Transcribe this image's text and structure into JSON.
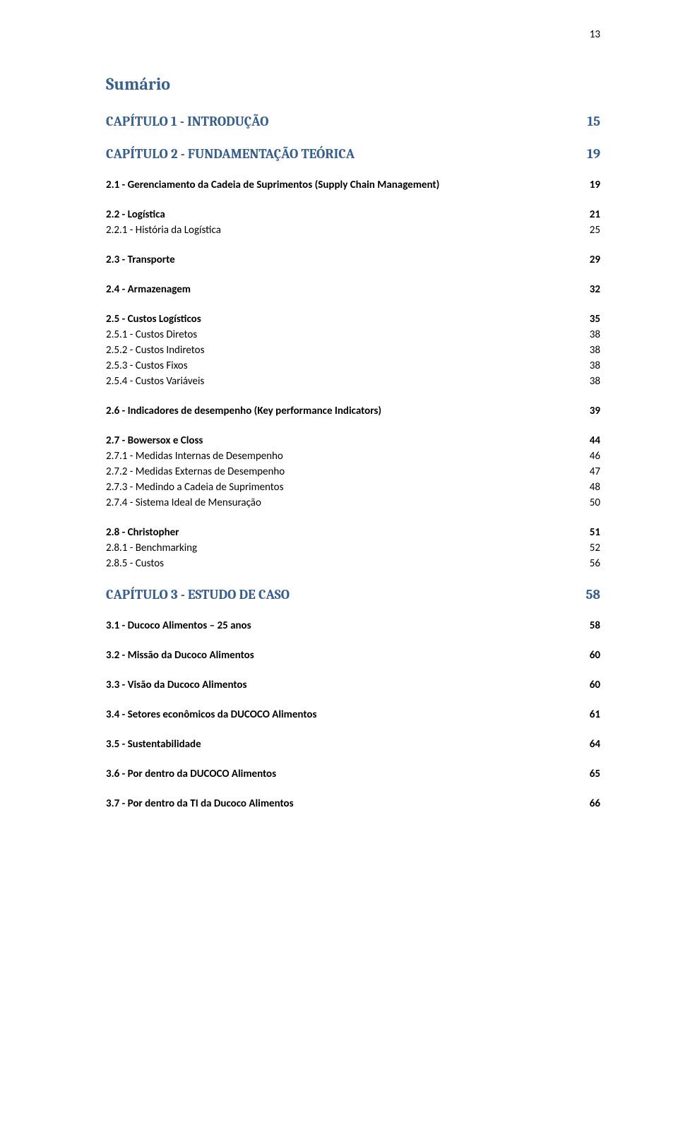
{
  "page_number": "13",
  "summary_heading": "Sumário",
  "colors": {
    "heading_blue": "#365f91",
    "text_black": "#000000",
    "background": "#ffffff"
  },
  "typography": {
    "heading_font": "Cambria",
    "body_font": "Calibri",
    "summary_fontsize": 24,
    "chapter_fontsize": 19,
    "section_fontsize": 15
  },
  "entries": [
    {
      "type": "chapter",
      "label": "CAPÍTULO 1 - INTRODUÇÃO",
      "page": "15"
    },
    {
      "type": "chapter",
      "label": "CAPÍTULO 2 - FUNDAMENTAÇÃO TEÓRICA",
      "page": "19"
    },
    {
      "type": "section",
      "label": "2.1 - Gerenciamento da Cadeia de Suprimentos (Supply Chain Management)",
      "page": "19"
    },
    {
      "type": "section",
      "label": "2.2 - Logística",
      "page": "21"
    },
    {
      "type": "sub",
      "label": "2.2.1 - História da Logística",
      "page": "25"
    },
    {
      "type": "section",
      "label": "2.3 - Transporte",
      "page": "29"
    },
    {
      "type": "section",
      "label": "2.4 - Armazenagem",
      "page": "32"
    },
    {
      "type": "section",
      "label": "2.5 - Custos Logísticos",
      "page": "35"
    },
    {
      "type": "sub",
      "label": "2.5.1 - Custos Diretos",
      "page": "38"
    },
    {
      "type": "sub",
      "label": "2.5.2 - Custos Indiretos",
      "page": "38"
    },
    {
      "type": "sub",
      "label": "2.5.3 - Custos Fixos",
      "page": "38"
    },
    {
      "type": "sub",
      "label": "2.5.4 - Custos Variáveis",
      "page": "38"
    },
    {
      "type": "section",
      "label": "2.6 - Indicadores de desempenho (Key performance Indicators)",
      "page": "39"
    },
    {
      "type": "section",
      "label": "2.7 - Bowersox e Closs",
      "page": "44"
    },
    {
      "type": "sub",
      "label": "2.7.1 - Medidas Internas de Desempenho",
      "page": "46"
    },
    {
      "type": "sub",
      "label": "2.7.2 - Medidas Externas de Desempenho",
      "page": "47"
    },
    {
      "type": "sub",
      "label": "2.7.3 - Medindo a Cadeia de Suprimentos",
      "page": "48"
    },
    {
      "type": "sub",
      "label": "2.7.4 - Sistema Ideal de Mensuração",
      "page": "50"
    },
    {
      "type": "section",
      "label": "2.8 - Christopher",
      "page": "51"
    },
    {
      "type": "sub",
      "label": "2.8.1 - Benchmarking",
      "page": "52"
    },
    {
      "type": "sub",
      "label": "2.8.5 - Custos",
      "page": "56"
    },
    {
      "type": "chapter",
      "label": "CAPÍTULO 3 - ESTUDO DE CASO",
      "page": "58"
    },
    {
      "type": "section",
      "label": "3.1 - Ducoco Alimentos – 25 anos",
      "page": "58"
    },
    {
      "type": "section",
      "label": "3.2 - Missão da Ducoco Alimentos",
      "page": "60"
    },
    {
      "type": "section",
      "label": "3.3 - Visão da Ducoco Alimentos",
      "page": "60"
    },
    {
      "type": "section",
      "label": "3.4 - Setores econômicos da DUCOCO Alimentos",
      "page": "61"
    },
    {
      "type": "section",
      "label": "3.5 - Sustentabilidade",
      "page": "64"
    },
    {
      "type": "section",
      "label": "3.6 - Por dentro da DUCOCO Alimentos",
      "page": "65"
    },
    {
      "type": "section",
      "label": "3.7 - Por dentro da TI da Ducoco Alimentos",
      "page": "66"
    }
  ]
}
